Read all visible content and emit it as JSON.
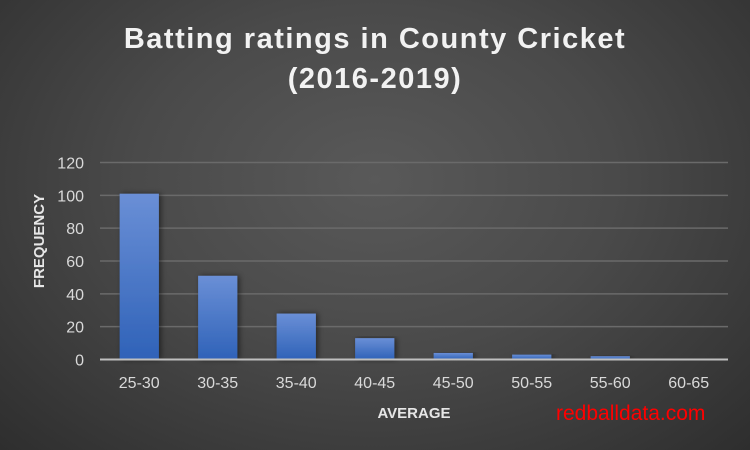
{
  "chart_data": {
    "type": "bar",
    "title_line1": "Batting ratings in County Cricket",
    "title_line2": "(2016-2019)",
    "xlabel": "AVERAGE",
    "ylabel": "FREQUENCY",
    "categories": [
      "25-30",
      "30-35",
      "35-40",
      "40-45",
      "45-50",
      "50-55",
      "55-60",
      "60-65"
    ],
    "values": [
      101,
      51,
      28,
      13,
      4,
      3,
      2,
      0
    ],
    "ylim": [
      0,
      120
    ],
    "yticks": [
      0,
      20,
      40,
      60,
      80,
      100,
      120
    ],
    "grid": true,
    "bar_color": "#4472c4"
  },
  "credit": "redballdata.com"
}
